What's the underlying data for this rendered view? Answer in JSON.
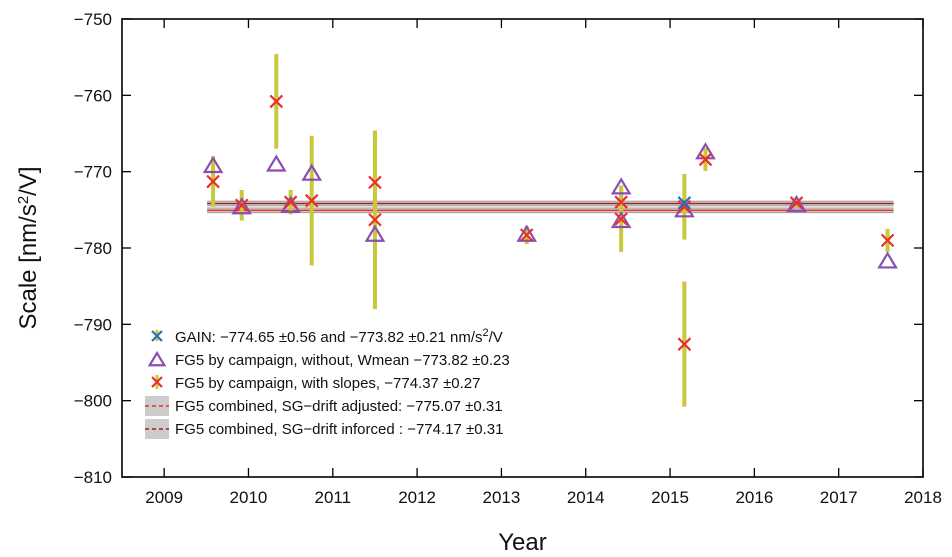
{
  "chart_data": {
    "type": "scatter",
    "title": "",
    "xlabel": "Year",
    "ylabel_parts": {
      "pre": "Scale [nm/s",
      "sup": "2",
      "post": "/V]"
    },
    "xlim": [
      2008.5,
      2018
    ],
    "ylim": [
      -810,
      -750
    ],
    "xticks": [
      2009,
      2010,
      2011,
      2012,
      2013,
      2014,
      2015,
      2016,
      2017,
      2018
    ],
    "yticks": [
      -750,
      -760,
      -770,
      -780,
      -790,
      -800,
      -810
    ],
    "xtick_labels": [
      "2009",
      "2010",
      "2011",
      "2012",
      "2013",
      "2014",
      "2015",
      "2016",
      "2017",
      "2018"
    ],
    "ytick_labels": [
      "−750",
      "−760",
      "−770",
      "−780",
      "−790",
      "−800",
      "−810"
    ],
    "colors": {
      "gain": "#2a6fb5",
      "triangle": "#8a4fb0",
      "cross": "#e8312a",
      "errorbar": "#c9c83a",
      "band": "#cccccc",
      "line_adjusted": "#e8312a",
      "line_inforced": "#a02020"
    },
    "bands": [
      {
        "center": -775.07,
        "sigma": 0.31,
        "style": "dashed-red"
      },
      {
        "center": -774.17,
        "sigma": 0.31,
        "style": "dashed-darkred"
      }
    ],
    "series": [
      {
        "marker": "triangle",
        "points": [
          {
            "x": 2009.58,
            "y": -769.0
          },
          {
            "x": 2009.92,
            "y": -774.4
          },
          {
            "x": 2010.33,
            "y": -768.8
          },
          {
            "x": 2010.5,
            "y": -774.2
          },
          {
            "x": 2010.75,
            "y": -770.0
          },
          {
            "x": 2011.5,
            "y": -778.0
          },
          {
            "x": 2013.3,
            "y": -778.0
          },
          {
            "x": 2014.42,
            "y": -771.8
          },
          {
            "x": 2014.42,
            "y": -776.2
          },
          {
            "x": 2015.17,
            "y": -774.8
          },
          {
            "x": 2015.42,
            "y": -767.2
          },
          {
            "x": 2016.5,
            "y": -774.1
          },
          {
            "x": 2017.58,
            "y": -781.5
          }
        ]
      },
      {
        "marker": "cross",
        "points": [
          {
            "x": 2009.58,
            "y": -771.3,
            "err": 3.3
          },
          {
            "x": 2009.92,
            "y": -774.4,
            "err": 2.0
          },
          {
            "x": 2010.33,
            "y": -760.8,
            "err": 6.2
          },
          {
            "x": 2010.5,
            "y": -774.0,
            "err": 1.6
          },
          {
            "x": 2010.75,
            "y": -773.8,
            "err": 8.5
          },
          {
            "x": 2011.5,
            "y": -771.4,
            "err": 6.8
          },
          {
            "x": 2011.5,
            "y": -776.3,
            "err": 11.7
          },
          {
            "x": 2013.3,
            "y": -778.3,
            "err": 1.2
          },
          {
            "x": 2014.42,
            "y": -774.0,
            "err": 2.2
          },
          {
            "x": 2014.42,
            "y": -776.2,
            "err": 4.3
          },
          {
            "x": 2015.17,
            "y": -774.6,
            "err": 4.3
          },
          {
            "x": 2015.17,
            "y": -792.6,
            "err": 8.2
          },
          {
            "x": 2015.42,
            "y": -768.4,
            "err": 1.5
          },
          {
            "x": 2016.5,
            "y": -774.1,
            "err": 0.6
          },
          {
            "x": 2017.58,
            "y": -779.0,
            "err": 1.5
          }
        ]
      },
      {
        "marker": "gain",
        "points": [
          {
            "x": 2015.17,
            "y": -774.1
          }
        ]
      }
    ],
    "legend": {
      "placement": "bottom-left",
      "entries": [
        {
          "symbol": "gain",
          "text": "GAIN: −774.65 ±0.56 and −773.82 ±0.21  nm/s",
          "sup": "2",
          "post": "/V"
        },
        {
          "symbol": "triangle",
          "text": "FG5 by campaign, without, Wmean −773.82 ±0.23"
        },
        {
          "symbol": "cross",
          "text": "FG5 by campaign, with slopes,        −774.37 ±0.27"
        },
        {
          "symbol": "band-red",
          "text": "FG5 combined, SG−drift adjusted:  −775.07 ±0.31"
        },
        {
          "symbol": "band-darkred",
          "text": "FG5 combined, SG−drift inforced :  −774.17 ±0.31"
        }
      ]
    }
  }
}
